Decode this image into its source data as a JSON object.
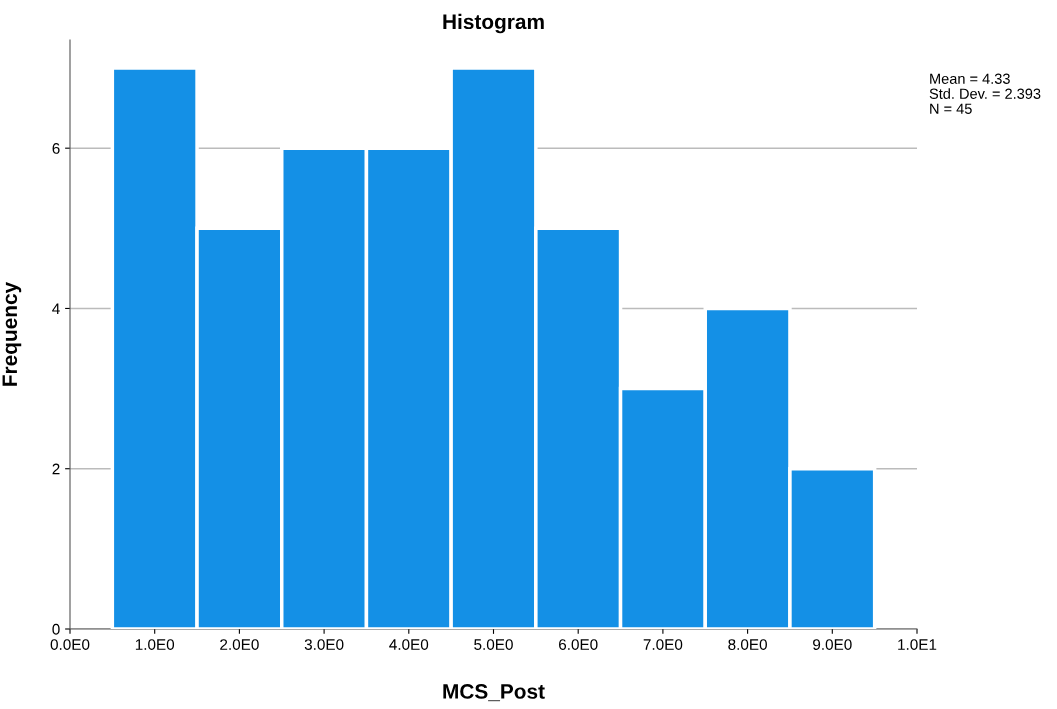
{
  "chart_data": {
    "type": "histogram",
    "title": "Histogram",
    "xlabel": "MCS_Post",
    "ylabel": "Frequency",
    "bins": [
      0.5,
      1.5,
      2.5,
      3.5,
      4.5,
      5.5,
      6.5,
      7.5,
      8.5,
      9.5
    ],
    "values": [
      7,
      5,
      6,
      6,
      7,
      5,
      3,
      4,
      2
    ],
    "color": "#1490e6",
    "xlim": [
      0,
      10
    ],
    "xticks": [
      {
        "value": 0,
        "label": "0.0E0"
      },
      {
        "value": 1,
        "label": "1.0E0"
      },
      {
        "value": 2,
        "label": "2.0E0"
      },
      {
        "value": 3,
        "label": "3.0E0"
      },
      {
        "value": 4,
        "label": "4.0E0"
      },
      {
        "value": 5,
        "label": "5.0E0"
      },
      {
        "value": 6,
        "label": "6.0E0"
      },
      {
        "value": 7,
        "label": "7.0E0"
      },
      {
        "value": 8,
        "label": "8.0E0"
      },
      {
        "value": 9,
        "label": "9.0E0"
      },
      {
        "value": 10,
        "label": "1.0E1"
      }
    ],
    "ylim": [
      0,
      7.35
    ],
    "yticks": [
      0,
      2,
      4,
      6
    ],
    "grid": "y",
    "annotations": [
      "Mean = 4.33",
      "Std. Dev. = 2.393",
      "N = 45"
    ]
  }
}
